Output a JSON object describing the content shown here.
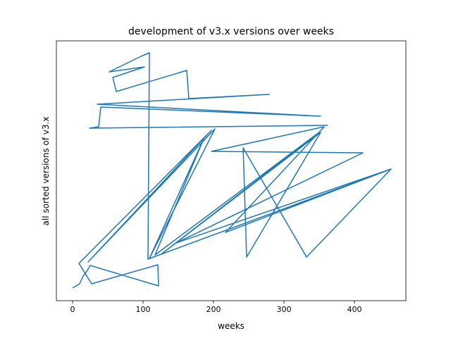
{
  "chart_data": {
    "type": "line",
    "title": "development of v3.x versions over weeks",
    "x_label": "weeks",
    "y_label": "all sorted versions of v3.x",
    "xlim": [
      -23,
      473
    ],
    "xticks": [
      0,
      100,
      200,
      300,
      400
    ],
    "ylim": [
      0,
      369
    ],
    "x": [
      0,
      10,
      15,
      21,
      25,
      122,
      121,
      27,
      9,
      197,
      22,
      202,
      109,
      187,
      117,
      347,
      127,
      352,
      247,
      242,
      332,
      452,
      147,
      412,
      197,
      357,
      217,
      452,
      107,
      109,
      97,
      52,
      102,
      57,
      62,
      162,
      165,
      279,
      35,
      352,
      40,
      37,
      24,
      362
    ],
    "series": [
      {
        "color": "#1f77b4",
        "values": [
          18,
          24,
          35,
          43,
          50,
          21,
          51,
          24,
          53,
          242,
          55,
          244,
          60,
          232,
          65,
          237,
          67,
          239,
          62,
          217,
          62,
          187,
          82,
          210,
          212,
          247,
          97,
          187,
          59,
          352,
          347,
          325,
          332,
          317,
          297,
          327,
          287,
          293,
          279,
          262,
          275,
          247,
          245,
          249
        ]
      }
    ]
  }
}
